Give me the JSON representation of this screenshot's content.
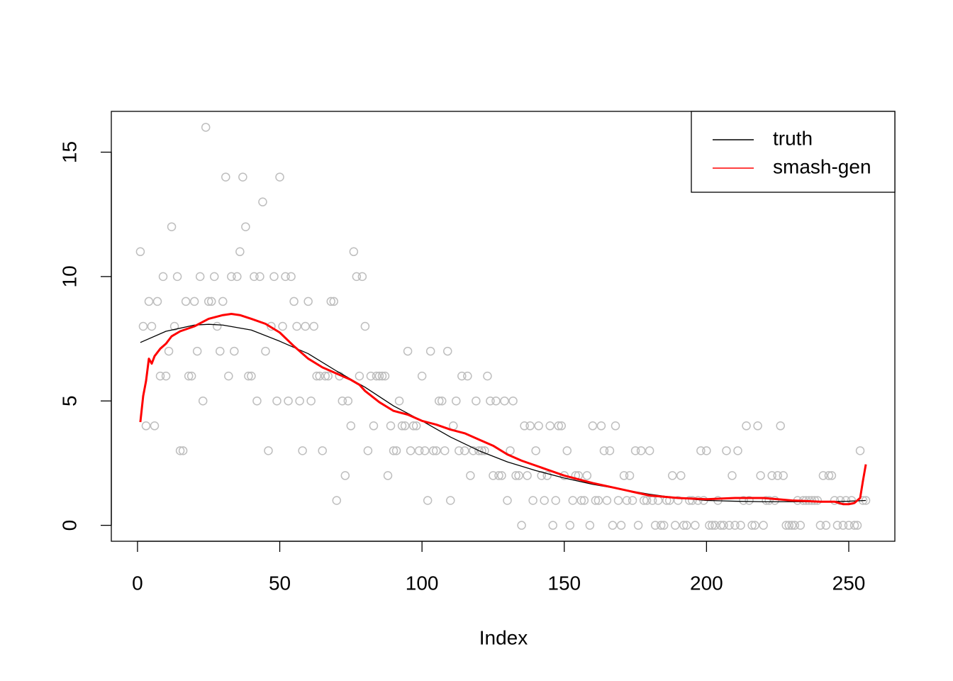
{
  "chart_data": {
    "type": "scatter",
    "xlabel": "Index",
    "xlim": [
      -9.2,
      266.2
    ],
    "ylim": [
      -0.64,
      16.64
    ],
    "xticks": [
      0,
      50,
      100,
      150,
      200,
      250
    ],
    "yticks": [
      0,
      5,
      10,
      15
    ],
    "legend": "topright",
    "points": {
      "color": "#bebebe",
      "x": [
        1,
        2,
        3,
        4,
        5,
        6,
        7,
        8,
        9,
        10,
        11,
        12,
        13,
        14,
        15,
        16,
        17,
        18,
        19,
        20,
        21,
        22,
        23,
        24,
        25,
        26,
        27,
        28,
        29,
        30,
        31,
        32,
        33,
        34,
        35,
        36,
        37,
        38,
        39,
        40,
        41,
        42,
        43,
        44,
        45,
        46,
        47,
        48,
        49,
        50,
        51,
        52,
        53,
        54,
        55,
        56,
        57,
        58,
        59,
        60,
        61,
        62,
        63,
        64,
        65,
        66,
        67,
        68,
        69,
        70,
        71,
        72,
        73,
        74,
        75,
        76,
        77,
        78,
        79,
        80,
        81,
        82,
        83,
        84,
        85,
        86,
        87,
        88,
        89,
        90,
        91,
        92,
        93,
        94,
        95,
        96,
        97,
        98,
        99,
        100,
        101,
        102,
        103,
        104,
        105,
        106,
        107,
        108,
        109,
        110,
        111,
        112,
        113,
        114,
        115,
        116,
        117,
        118,
        119,
        120,
        121,
        122,
        123,
        124,
        125,
        126,
        127,
        128,
        129,
        130,
        131,
        132,
        133,
        134,
        135,
        136,
        137,
        138,
        139,
        140,
        141,
        142,
        143,
        144,
        145,
        146,
        147,
        148,
        149,
        150,
        151,
        152,
        153,
        154,
        155,
        156,
        157,
        158,
        159,
        160,
        161,
        162,
        163,
        164,
        165,
        166,
        167,
        168,
        169,
        170,
        171,
        172,
        173,
        174,
        175,
        176,
        177,
        178,
        179,
        180,
        181,
        182,
        183,
        184,
        185,
        186,
        187,
        188,
        189,
        190,
        191,
        192,
        193,
        194,
        195,
        196,
        197,
        198,
        199,
        200,
        201,
        202,
        203,
        204,
        205,
        206,
        207,
        208,
        209,
        210,
        211,
        212,
        213,
        214,
        215,
        216,
        217,
        218,
        219,
        220,
        221,
        222,
        223,
        224,
        225,
        226,
        227,
        228,
        229,
        230,
        231,
        232,
        233,
        234,
        235,
        236,
        237,
        238,
        239,
        240,
        241,
        242,
        243,
        244,
        245,
        246,
        247,
        248,
        249,
        250,
        251,
        252,
        253,
        254,
        255,
        256
      ],
      "values": [
        11,
        8,
        4,
        9,
        8,
        4,
        9,
        6,
        10,
        6,
        7,
        12,
        8,
        10,
        3,
        3,
        9,
        6,
        6,
        9,
        7,
        10,
        5,
        16,
        9,
        9,
        10,
        8,
        7,
        9,
        14,
        6,
        10,
        7,
        10,
        11,
        14,
        12,
        6,
        6,
        10,
        5,
        10,
        13,
        7,
        3,
        8,
        10,
        5,
        14,
        8,
        10,
        5,
        10,
        9,
        8,
        5,
        3,
        8,
        9,
        5,
        8,
        6,
        6,
        3,
        6,
        6,
        9,
        9,
        1,
        6,
        5,
        2,
        5,
        4,
        11,
        10,
        6,
        10,
        8,
        3,
        6,
        4,
        6,
        6,
        6,
        6,
        2,
        4,
        3,
        3,
        5,
        4,
        4,
        7,
        3,
        4,
        4,
        3,
        6,
        3,
        1,
        7,
        3,
        3,
        5,
        5,
        3,
        7,
        1,
        4,
        5,
        3,
        6,
        3,
        6,
        2,
        3,
        5,
        3,
        3,
        3,
        6,
        5,
        2,
        5,
        2,
        2,
        5,
        1,
        3,
        5,
        2,
        2,
        0,
        4,
        2,
        4,
        1,
        3,
        4,
        2,
        1,
        2,
        4,
        0,
        1,
        4,
        4,
        2,
        3,
        0,
        1,
        2,
        2,
        1,
        1,
        2,
        0,
        4,
        1,
        1,
        4,
        3,
        1,
        3,
        0,
        4,
        1,
        0,
        2,
        1,
        2,
        1,
        3,
        0,
        3,
        1,
        1,
        3,
        1,
        0,
        1,
        0,
        0,
        1,
        1,
        2,
        0,
        1,
        2,
        0,
        0,
        1,
        1,
        0,
        1,
        3,
        1,
        3,
        0,
        0,
        0,
        1,
        0,
        0,
        3,
        0,
        2,
        0,
        3,
        0,
        1,
        4,
        1,
        0,
        0,
        4,
        2,
        0,
        1,
        1,
        2,
        1,
        2,
        4,
        2,
        0,
        0,
        0,
        0,
        1,
        0,
        1,
        1,
        1,
        1,
        1,
        1,
        0,
        2,
        0,
        2,
        2,
        1,
        0,
        1,
        0,
        1,
        0,
        1,
        0,
        0,
        3,
        1,
        1
      ]
    },
    "series": [
      {
        "name": "truth",
        "color": "#000000",
        "x": [
          1,
          10,
          20,
          25,
          30,
          40,
          50,
          60,
          70,
          80,
          90,
          100,
          110,
          120,
          130,
          140,
          150,
          160,
          170,
          180,
          190,
          200,
          210,
          220,
          230,
          240,
          250,
          256
        ],
        "values": [
          7.35,
          7.8,
          8.05,
          8.08,
          8.05,
          7.85,
          7.4,
          6.9,
          6.2,
          5.55,
          4.8,
          4.2,
          3.55,
          3.0,
          2.55,
          2.2,
          1.9,
          1.65,
          1.45,
          1.25,
          1.1,
          1.0,
          0.97,
          0.95,
          0.95,
          0.95,
          0.97,
          1.0
        ]
      },
      {
        "name": "smash-gen",
        "color": "#ff0000",
        "x": [
          1,
          2,
          3,
          4,
          5,
          6,
          8,
          10,
          12,
          15,
          20,
          25,
          30,
          33,
          36,
          40,
          45,
          50,
          55,
          60,
          65,
          70,
          75,
          78,
          80,
          85,
          90,
          95,
          100,
          105,
          110,
          115,
          120,
          125,
          130,
          135,
          140,
          145,
          150,
          155,
          160,
          170,
          180,
          190,
          200,
          210,
          220,
          225,
          230,
          240,
          245,
          248,
          250,
          252,
          253,
          254,
          255,
          256
        ],
        "values": [
          4.15,
          5.2,
          5.8,
          6.7,
          6.5,
          6.8,
          7.1,
          7.3,
          7.6,
          7.8,
          8.0,
          8.3,
          8.45,
          8.5,
          8.45,
          8.3,
          8.1,
          7.75,
          7.2,
          6.7,
          6.35,
          6.1,
          5.85,
          5.65,
          5.4,
          4.95,
          4.6,
          4.45,
          4.2,
          4.05,
          3.85,
          3.7,
          3.45,
          3.2,
          2.85,
          2.6,
          2.4,
          2.2,
          2.0,
          1.85,
          1.7,
          1.45,
          1.2,
          1.1,
          1.05,
          1.1,
          1.1,
          1.05,
          1.0,
          0.95,
          0.95,
          0.85,
          0.85,
          0.9,
          1.0,
          1.1,
          1.8,
          2.45
        ]
      }
    ]
  }
}
